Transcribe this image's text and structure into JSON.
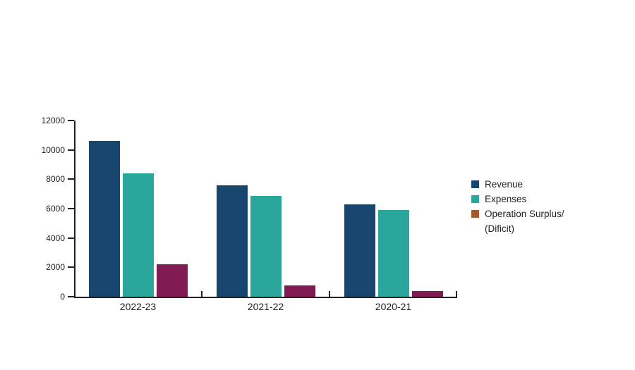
{
  "chart_data": {
    "type": "bar",
    "title": "",
    "xlabel": "",
    "ylabel": "",
    "categories": [
      "2022-23",
      "2021-22",
      "2020-21"
    ],
    "series": [
      {
        "name": "Revenue",
        "legend_lines": [
          "Revenue"
        ],
        "color": "#17456e",
        "legend_color": "#17456e",
        "values": [
          10600,
          7600,
          6300
        ]
      },
      {
        "name": "Expenses",
        "legend_lines": [
          "Expenses"
        ],
        "color": "#2aa69c",
        "legend_color": "#2aa69c",
        "values": [
          8400,
          6850,
          5900
        ]
      },
      {
        "name": "Operation Surplus/(Dificit)",
        "legend_lines": [
          "Operation Surplus/",
          "(Dificit)"
        ],
        "color": "#811b53",
        "legend_color": "#a5572e",
        "values": [
          2200,
          750,
          400
        ]
      }
    ],
    "ylim": [
      0,
      12000
    ],
    "yticks": [
      0,
      2000,
      4000,
      6000,
      8000,
      10000,
      12000
    ],
    "grid": false,
    "legend_position": "right",
    "axis_color": "#1f1f1f",
    "background_color": "#ffffff"
  }
}
